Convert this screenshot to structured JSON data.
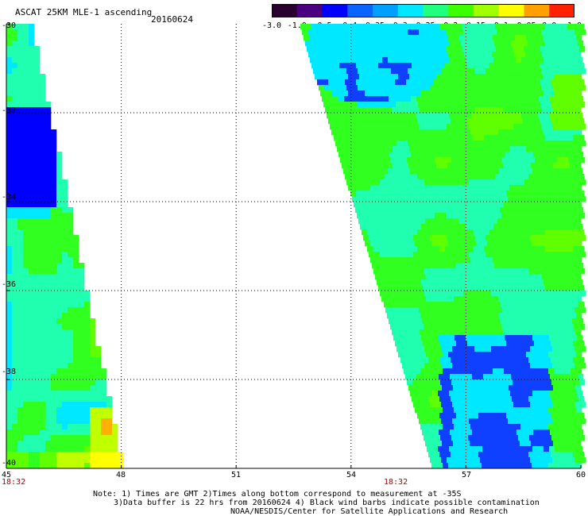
{
  "header": {
    "title": "ASCAT 25KM MLE-1 ascending",
    "date": "20160624"
  },
  "colorbar": {
    "ticks": [
      "-3.0",
      "-1.0",
      "-0.5",
      "-0.4",
      "-0.35",
      "-0.3",
      "-0.25",
      "-0.2",
      "-0.15",
      "-0.1",
      "-0.05",
      "0.0",
      "1.0"
    ],
    "colors": [
      "#2a0030",
      "#4b0082",
      "#0000ff",
      "#0a64ff",
      "#00a0ff",
      "#00e8ff",
      "#20ff80",
      "#3cff00",
      "#a0ff00",
      "#ffff00",
      "#ffa000",
      "#ff2000"
    ]
  },
  "axes": {
    "x_ticks": [
      "45",
      "48",
      "51",
      "54",
      "57",
      "60"
    ],
    "y_ticks": [
      "-30",
      "-32",
      "-34",
      "-36",
      "-38",
      "-40"
    ],
    "x_range": [
      45,
      60
    ],
    "y_range": [
      -40,
      -30
    ]
  },
  "swath_times": [
    "18:32",
    "18:32"
  ],
  "notes": [
    "Note: 1) Times are GMT 2)Times along bottom correspond to measurement at -35S",
    "3)Data buffer is 22 hrs from 20160624 4) Black wind barbs indicate possible contamination",
    "NOAA/NESDIS/Center for Satellite Applications and Research"
  ]
}
